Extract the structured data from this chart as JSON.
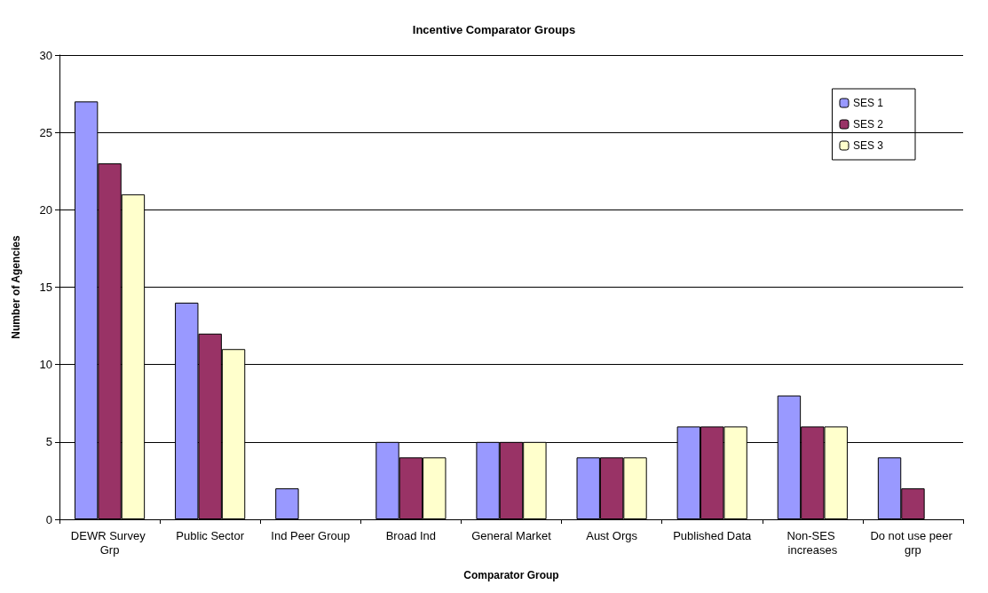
{
  "chart_data": {
    "type": "bar",
    "title": "Incentive Comparator Groups",
    "xlabel": "Comparator Group",
    "ylabel": "Number of Agencies",
    "categories": [
      "DEWR Survey Grp",
      "Public Sector",
      "Ind Peer Group",
      "Broad Ind",
      "General Market",
      "Aust Orgs",
      "Published Data",
      "Non-SES increases",
      "Do not use peer grp"
    ],
    "series": [
      {
        "name": "SES 1",
        "color": "#9999ff",
        "values": [
          27,
          14,
          2,
          5,
          5,
          4,
          6,
          8,
          4
        ]
      },
      {
        "name": "SES 2",
        "color": "#993366",
        "values": [
          23,
          12,
          0,
          4,
          5,
          4,
          6,
          6,
          2
        ]
      },
      {
        "name": "SES 3",
        "color": "#ffffcc",
        "values": [
          21,
          11,
          0,
          4,
          5,
          4,
          6,
          6,
          0
        ]
      }
    ],
    "ylim": [
      0,
      30
    ],
    "yticks": [
      0,
      5,
      10,
      15,
      20,
      25,
      30
    ],
    "grid": "y",
    "legend": "top right"
  }
}
